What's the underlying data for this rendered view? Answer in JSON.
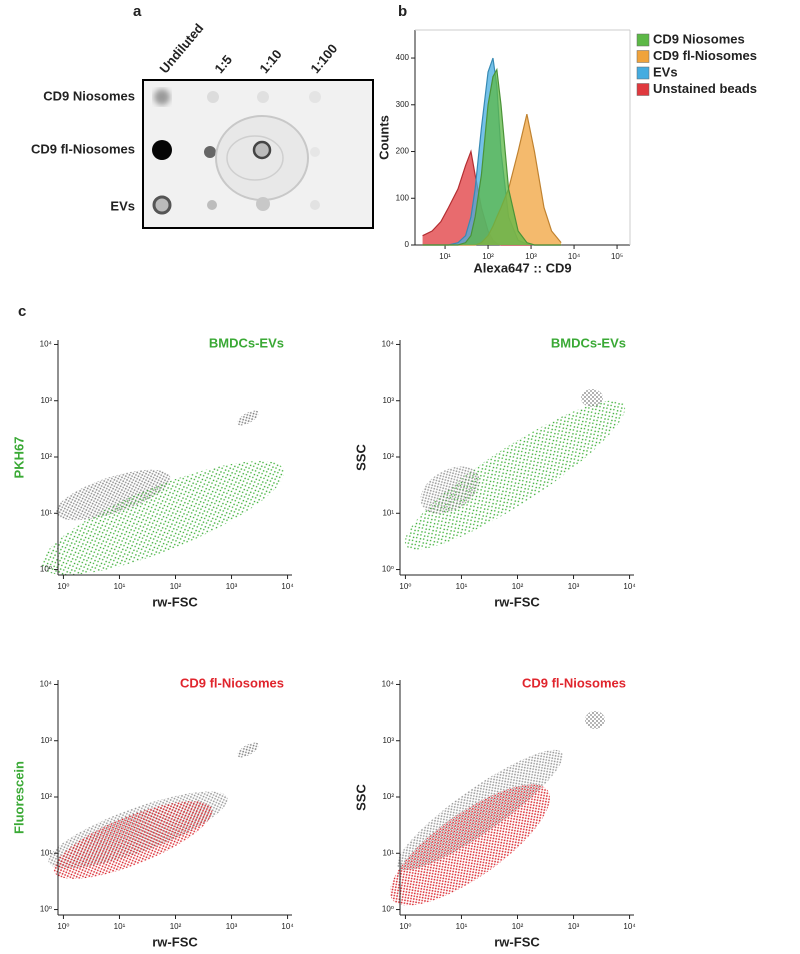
{
  "panel_labels": [
    "a",
    "b",
    "c"
  ],
  "dot_blot": {
    "columns": [
      "Undiluted",
      "1:5",
      "1:10",
      "1:100"
    ],
    "rows": [
      "CD9 Niosomes",
      "CD9 fl-Niosomes",
      "EVs"
    ]
  },
  "chart_data": [
    {
      "type": "area",
      "xlabel": "Alexa647 :: CD9",
      "ylabel": "Counts",
      "xscale": "log",
      "xlim": [
        2,
        200000
      ],
      "ylim": [
        0,
        460
      ],
      "xticks": [
        {
          "value": 10,
          "label": "10¹"
        },
        {
          "value": 100,
          "label": "10²"
        },
        {
          "value": 1000,
          "label": "10³"
        },
        {
          "value": 10000,
          "label": "10⁴"
        },
        {
          "value": 100000,
          "label": "10⁵"
        }
      ],
      "yticks": [
        0,
        100,
        200,
        300,
        400
      ],
      "legend": "outside right",
      "x": [
        3,
        5,
        8,
        12,
        20,
        30,
        40,
        50,
        70,
        100,
        130,
        160,
        200,
        300,
        500,
        800,
        1200,
        2000,
        3000,
        5000
      ],
      "series": [
        {
          "name": "CD9 Niosomes",
          "color": "#5cb846",
          "values": [
            0,
            0,
            0,
            0,
            0,
            5,
            20,
            60,
            150,
            300,
            360,
            375,
            300,
            120,
            30,
            5,
            0,
            0,
            0,
            0
          ]
        },
        {
          "name": "CD9 fl-Niosomes",
          "color": "#f0a33c",
          "values": [
            0,
            0,
            0,
            0,
            0,
            0,
            0,
            0,
            5,
            20,
            40,
            60,
            80,
            120,
            200,
            280,
            200,
            80,
            30,
            5
          ]
        },
        {
          "name": "EVs",
          "color": "#45ace0",
          "values": [
            0,
            0,
            0,
            0,
            5,
            20,
            60,
            120,
            250,
            370,
            400,
            340,
            200,
            60,
            10,
            2,
            0,
            0,
            0,
            0
          ]
        },
        {
          "name": "Unstained beads",
          "color": "#e0393e",
          "values": [
            20,
            30,
            50,
            80,
            120,
            170,
            200,
            150,
            80,
            30,
            10,
            3,
            0,
            0,
            0,
            0,
            0,
            0,
            0,
            0
          ]
        }
      ]
    },
    {
      "type": "scatter",
      "title": "BMDCs-EVs",
      "title_color": "#3aa935",
      "xlabel": "rw-FSC",
      "ylabel": "PKH67",
      "ylabel_color": "#3aa935",
      "xscale": "log",
      "yscale": "log",
      "xlim": [
        0.8,
        12000
      ],
      "ylim": [
        0.8,
        12000
      ],
      "xticks": [
        {
          "value": 1,
          "label": "10⁰"
        },
        {
          "value": 10,
          "label": "10¹"
        },
        {
          "value": 100,
          "label": "10²"
        },
        {
          "value": 1000,
          "label": "10³"
        },
        {
          "value": 10000,
          "label": "10⁴"
        }
      ],
      "yticks": [
        {
          "value": 1,
          "label": "10⁰"
        },
        {
          "value": 10,
          "label": "10¹"
        },
        {
          "value": 100,
          "label": "10²"
        },
        {
          "value": 1000,
          "label": "10³"
        },
        {
          "value": 10000,
          "label": "10⁴"
        }
      ]
    },
    {
      "type": "scatter",
      "title": "BMDCs-EVs",
      "title_color": "#3aa935",
      "xlabel": "rw-FSC",
      "ylabel": "SSC",
      "ylabel_color": "#222222",
      "xscale": "log",
      "yscale": "log",
      "xlim": [
        0.8,
        12000
      ],
      "ylim": [
        0.8,
        12000
      ],
      "xticks": [
        {
          "value": 1,
          "label": "10⁰"
        },
        {
          "value": 10,
          "label": "10¹"
        },
        {
          "value": 100,
          "label": "10²"
        },
        {
          "value": 1000,
          "label": "10³"
        },
        {
          "value": 10000,
          "label": "10⁴"
        }
      ],
      "yticks": [
        {
          "value": 1,
          "label": "10⁰"
        },
        {
          "value": 10,
          "label": "10¹"
        },
        {
          "value": 100,
          "label": "10²"
        },
        {
          "value": 1000,
          "label": "10³"
        },
        {
          "value": 10000,
          "label": "10⁴"
        }
      ]
    },
    {
      "type": "scatter",
      "title": "CD9 fl-Niosomes",
      "title_color": "#e0252d",
      "xlabel": "rw-FSC",
      "ylabel": "Fluorescein",
      "ylabel_color": "#3aa935",
      "xscale": "log",
      "yscale": "log",
      "xlim": [
        0.8,
        12000
      ],
      "ylim": [
        0.8,
        12000
      ],
      "xticks": [
        {
          "value": 1,
          "label": "10⁰"
        },
        {
          "value": 10,
          "label": "10¹"
        },
        {
          "value": 100,
          "label": "10²"
        },
        {
          "value": 1000,
          "label": "10³"
        },
        {
          "value": 10000,
          "label": "10⁴"
        }
      ],
      "yticks": [
        {
          "value": 1,
          "label": "10⁰"
        },
        {
          "value": 10,
          "label": "10¹"
        },
        {
          "value": 100,
          "label": "10²"
        },
        {
          "value": 1000,
          "label": "10³"
        },
        {
          "value": 10000,
          "label": "10⁴"
        }
      ]
    },
    {
      "type": "scatter",
      "title": "CD9 fl-Niosomes",
      "title_color": "#e0252d",
      "xlabel": "rw-FSC",
      "ylabel": "SSC",
      "ylabel_color": "#222222",
      "xscale": "log",
      "yscale": "log",
      "xlim": [
        0.8,
        12000
      ],
      "ylim": [
        0.8,
        12000
      ],
      "xticks": [
        {
          "value": 1,
          "label": "10⁰"
        },
        {
          "value": 10,
          "label": "10¹"
        },
        {
          "value": 100,
          "label": "10²"
        },
        {
          "value": 1000,
          "label": "10³"
        },
        {
          "value": 10000,
          "label": "10⁴"
        }
      ],
      "yticks": [
        {
          "value": 1,
          "label": "10⁰"
        },
        {
          "value": 10,
          "label": "10¹"
        },
        {
          "value": 100,
          "label": "10²"
        },
        {
          "value": 1000,
          "label": "10³"
        },
        {
          "value": 10000,
          "label": "10⁴"
        }
      ]
    }
  ]
}
